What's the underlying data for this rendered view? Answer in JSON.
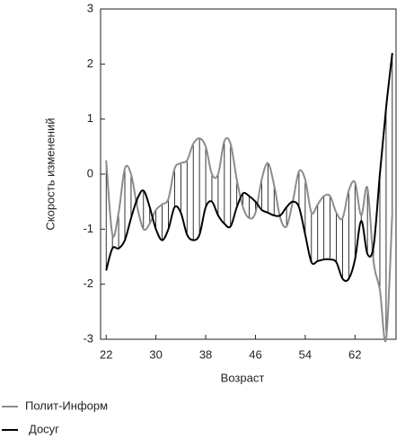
{
  "chart_data": {
    "type": "line",
    "x_label": "Возраст",
    "y_label": "Скорость изменений",
    "x": [
      22,
      23,
      24,
      25,
      26,
      27,
      28,
      29,
      30,
      31,
      32,
      33,
      34,
      35,
      36,
      37,
      38,
      39,
      40,
      41,
      42,
      43,
      44,
      45,
      46,
      47,
      48,
      49,
      50,
      51,
      52,
      53,
      54,
      55,
      56,
      57,
      58,
      59,
      60,
      61,
      62,
      63,
      64,
      65,
      66,
      67,
      68
    ],
    "series": [
      {
        "name": "Полит-Информ",
        "color": "#8c8c8c",
        "width": 2,
        "values": [
          0.25,
          -1.1,
          -0.7,
          0.1,
          0.0,
          -0.6,
          -1.0,
          -0.9,
          -0.65,
          -0.55,
          -0.45,
          0.1,
          0.2,
          0.25,
          0.55,
          0.65,
          0.5,
          0.0,
          0.0,
          0.6,
          0.55,
          -0.1,
          -0.6,
          -0.8,
          -0.7,
          -0.1,
          0.2,
          -0.2,
          -0.8,
          -0.95,
          -0.5,
          0.05,
          -0.1,
          -0.7,
          -0.55,
          -0.4,
          -0.4,
          -0.7,
          -0.8,
          -0.3,
          -0.15,
          -0.75,
          -0.25,
          -1.6,
          -2.1,
          -3.0,
          -0.7
        ]
      },
      {
        "name": "Досуг",
        "color": "#000000",
        "width": 2,
        "values": [
          -1.75,
          -1.35,
          -1.35,
          -1.2,
          -0.8,
          -0.45,
          -0.3,
          -0.6,
          -1.0,
          -1.2,
          -1.0,
          -0.6,
          -0.7,
          -1.1,
          -1.2,
          -1.1,
          -0.6,
          -0.5,
          -0.75,
          -0.9,
          -0.95,
          -0.6,
          -0.35,
          -0.4,
          -0.5,
          -0.65,
          -0.7,
          -0.75,
          -0.75,
          -0.6,
          -0.5,
          -0.6,
          -1.1,
          -1.6,
          -1.58,
          -1.55,
          -1.55,
          -1.6,
          -1.9,
          -1.9,
          -1.55,
          -0.85,
          -1.45,
          -1.3,
          0.0,
          1.2,
          2.2
        ]
      }
    ],
    "xlim": [
      21.1,
      68.6
    ],
    "ylim": [
      -3,
      3
    ],
    "xticks": [
      22,
      30,
      38,
      46,
      54,
      62
    ],
    "yticks": [
      -3,
      -2,
      -1,
      0,
      1,
      2,
      3
    ],
    "grid": false,
    "legend": "bottom-left"
  }
}
